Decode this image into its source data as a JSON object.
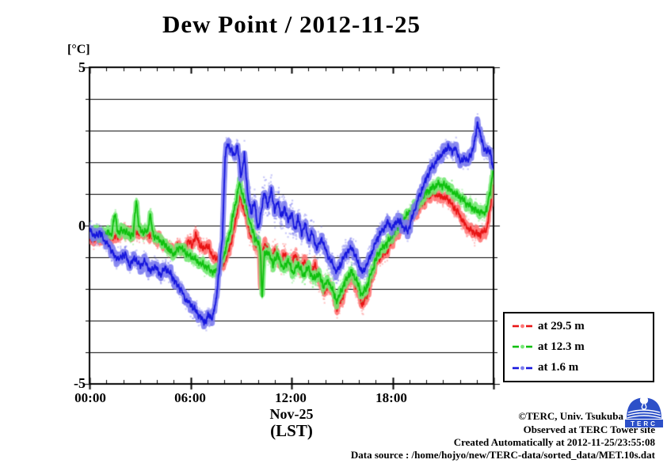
{
  "chart_data": {
    "type": "line",
    "title": "Dew Point / 2012-11-25",
    "ylabel": "[°C]",
    "xlabel": "Nov-25",
    "xlabel_sub": "(LST)",
    "xlim_hours": [
      0,
      24
    ],
    "ylim": [
      -5,
      5
    ],
    "grid": "horizontal, every 1 degC",
    "legend_position": "outside-right-bottom",
    "y_ticks": [
      {
        "value": 5,
        "label": "5"
      },
      {
        "value": 0,
        "label": "0"
      },
      {
        "value": -5,
        "label": "-5"
      }
    ],
    "x_ticks": [
      {
        "hour": 0,
        "label": "00:00"
      },
      {
        "hour": 6,
        "label": "06:00"
      },
      {
        "hour": 12,
        "label": "12:00"
      },
      {
        "hour": 18,
        "label": "18:00"
      }
    ],
    "series": [
      {
        "name": "at 29.5 m",
        "color_core": "#e81414",
        "color_band": "#ff7474",
        "points": [
          [
            0,
            -0.45
          ],
          [
            0.5,
            -0.4
          ],
          [
            1,
            -0.42
          ],
          [
            1.5,
            -0.35
          ],
          [
            1.8,
            -0.3
          ],
          [
            2.1,
            -0.12
          ],
          [
            2.3,
            -0.3
          ],
          [
            2.6,
            -0.2
          ],
          [
            3,
            -0.22
          ],
          [
            3.5,
            -0.28
          ],
          [
            4,
            -0.38
          ],
          [
            4.5,
            -0.62
          ],
          [
            5,
            -0.85
          ],
          [
            5.3,
            -0.6
          ],
          [
            5.6,
            -0.8
          ],
          [
            5.9,
            -0.45
          ],
          [
            6.1,
            -0.65
          ],
          [
            6.3,
            -0.3
          ],
          [
            6.55,
            -0.6
          ],
          [
            6.8,
            -0.75
          ],
          [
            7,
            -0.6
          ],
          [
            7.3,
            -0.95
          ],
          [
            7.6,
            -1.1
          ],
          [
            7.9,
            -1.28
          ],
          [
            8.1,
            -1.05
          ],
          [
            8.3,
            -0.75
          ],
          [
            8.6,
            -0.05
          ],
          [
            8.95,
            0.98
          ],
          [
            9.1,
            0.62
          ],
          [
            9.3,
            0.35
          ],
          [
            9.5,
            -0.15
          ],
          [
            9.7,
            -0.45
          ],
          [
            9.9,
            -0.62
          ],
          [
            10.05,
            -0.55
          ],
          [
            10.15,
            -1.95
          ],
          [
            10.3,
            -0.7
          ],
          [
            10.5,
            -0.62
          ],
          [
            10.8,
            -1.1
          ],
          [
            11,
            -0.72
          ],
          [
            11.3,
            -1.2
          ],
          [
            11.6,
            -0.9
          ],
          [
            11.9,
            -1.3
          ],
          [
            12.2,
            -0.92
          ],
          [
            12.5,
            -1.38
          ],
          [
            12.8,
            -1.1
          ],
          [
            13.1,
            -1.5
          ],
          [
            13.4,
            -1.25
          ],
          [
            13.7,
            -1.8
          ],
          [
            14,
            -2.05
          ],
          [
            14.3,
            -1.85
          ],
          [
            14.7,
            -2.6
          ],
          [
            15,
            -2.3
          ],
          [
            15.35,
            -1.75
          ],
          [
            15.6,
            -1.62
          ],
          [
            15.9,
            -2
          ],
          [
            16.2,
            -2.5
          ],
          [
            16.5,
            -2.2
          ],
          [
            16.8,
            -1.6
          ],
          [
            17.1,
            -1.1
          ],
          [
            17.4,
            -0.92
          ],
          [
            17.7,
            -0.8
          ],
          [
            18,
            -0.45
          ],
          [
            18.3,
            -0.22
          ],
          [
            18.6,
            -0.02
          ],
          [
            18.9,
            0.18
          ],
          [
            19.2,
            0.3
          ],
          [
            19.5,
            0.5
          ],
          [
            19.8,
            0.72
          ],
          [
            20.1,
            0.9
          ],
          [
            20.4,
            1.02
          ],
          [
            20.7,
            0.95
          ],
          [
            21,
            0.9
          ],
          [
            21.3,
            0.85
          ],
          [
            21.6,
            0.6
          ],
          [
            21.9,
            0.42
          ],
          [
            22.2,
            0.12
          ],
          [
            22.5,
            -0.08
          ],
          [
            22.8,
            -0.2
          ],
          [
            23.1,
            -0.27
          ],
          [
            23.4,
            -0.22
          ],
          [
            23.6,
            -0.12
          ],
          [
            23.8,
            0.55
          ],
          [
            24,
            1.55
          ]
        ]
      },
      {
        "name": "at 12.3 m",
        "color_core": "#0ec00e",
        "color_band": "#74e874",
        "points": [
          [
            0,
            -0.18
          ],
          [
            0.4,
            -0.25
          ],
          [
            0.8,
            -0.3
          ],
          [
            1.1,
            -0.22
          ],
          [
            1.3,
            -0.28
          ],
          [
            1.5,
            0.35
          ],
          [
            1.7,
            -0.22
          ],
          [
            2,
            -0.12
          ],
          [
            2.3,
            -0.28
          ],
          [
            2.6,
            -0.3
          ],
          [
            2.78,
            0.85
          ],
          [
            2.95,
            -0.12
          ],
          [
            3.2,
            -0.18
          ],
          [
            3.45,
            -0.22
          ],
          [
            3.6,
            0.4
          ],
          [
            3.78,
            -0.3
          ],
          [
            4.1,
            -0.42
          ],
          [
            4.4,
            -0.55
          ],
          [
            4.7,
            -0.75
          ],
          [
            5,
            -0.9
          ],
          [
            5.4,
            -0.68
          ],
          [
            5.8,
            -0.9
          ],
          [
            6.2,
            -1.05
          ],
          [
            6.6,
            -1.2
          ],
          [
            7,
            -1.32
          ],
          [
            7.4,
            -1.48
          ],
          [
            7.7,
            -1.3
          ],
          [
            8,
            -0.9
          ],
          [
            8.3,
            -0.3
          ],
          [
            8.6,
            0.5
          ],
          [
            8.9,
            1.35
          ],
          [
            9.1,
            1
          ],
          [
            9.3,
            0.65
          ],
          [
            9.5,
            0.18
          ],
          [
            9.8,
            -0.35
          ],
          [
            10.05,
            -0.6
          ],
          [
            10.15,
            -0.75
          ],
          [
            10.25,
            -2.3
          ],
          [
            10.4,
            -0.9
          ],
          [
            10.6,
            -0.82
          ],
          [
            10.9,
            -1.2
          ],
          [
            11.2,
            -0.92
          ],
          [
            11.5,
            -1.38
          ],
          [
            11.8,
            -1.1
          ],
          [
            12.1,
            -1.5
          ],
          [
            12.4,
            -1.2
          ],
          [
            12.7,
            -1.6
          ],
          [
            13,
            -1.32
          ],
          [
            13.3,
            -1.7
          ],
          [
            13.6,
            -1.5
          ],
          [
            13.9,
            -1.9
          ],
          [
            14.2,
            -1.72
          ],
          [
            14.7,
            -2.4
          ],
          [
            15,
            -2
          ],
          [
            15.35,
            -1.6
          ],
          [
            15.6,
            -1.45
          ],
          [
            15.9,
            -1.8
          ],
          [
            16.2,
            -2.2
          ],
          [
            16.5,
            -1.9
          ],
          [
            16.8,
            -1.4
          ],
          [
            17.1,
            -0.92
          ],
          [
            17.4,
            -0.7
          ],
          [
            17.7,
            -0.55
          ],
          [
            18,
            -0.3
          ],
          [
            18.3,
            -0.05
          ],
          [
            18.6,
            0.15
          ],
          [
            18.9,
            0.35
          ],
          [
            19.2,
            0.52
          ],
          [
            19.5,
            0.7
          ],
          [
            19.8,
            0.9
          ],
          [
            20.1,
            1.1
          ],
          [
            20.4,
            1.2
          ],
          [
            20.7,
            1.3
          ],
          [
            21,
            1.27
          ],
          [
            21.3,
            1.22
          ],
          [
            21.6,
            1.05
          ],
          [
            21.9,
            0.95
          ],
          [
            22.2,
            0.8
          ],
          [
            22.5,
            0.65
          ],
          [
            22.8,
            0.55
          ],
          [
            23.1,
            0.45
          ],
          [
            23.4,
            0.4
          ],
          [
            23.6,
            0.52
          ],
          [
            23.8,
            1.1
          ],
          [
            24,
            1.9
          ]
        ]
      },
      {
        "name": "at 1.6 m",
        "color_core": "#1616dd",
        "color_band": "#7a7aee",
        "points": [
          [
            0,
            -0.1
          ],
          [
            0.3,
            -0.35
          ],
          [
            0.6,
            -0.2
          ],
          [
            0.9,
            -0.48
          ],
          [
            1.2,
            -0.65
          ],
          [
            1.5,
            -1
          ],
          [
            1.8,
            -1.05
          ],
          [
            2.1,
            -0.88
          ],
          [
            2.4,
            -1.25
          ],
          [
            2.7,
            -1
          ],
          [
            3,
            -1.3
          ],
          [
            3.3,
            -1.1
          ],
          [
            3.6,
            -1.45
          ],
          [
            3.9,
            -1.28
          ],
          [
            4.2,
            -1.55
          ],
          [
            4.5,
            -1.35
          ],
          [
            4.8,
            -1.5
          ],
          [
            5.1,
            -1.8
          ],
          [
            5.4,
            -2
          ],
          [
            5.7,
            -2.3
          ],
          [
            6,
            -2.5
          ],
          [
            6.3,
            -2.7
          ],
          [
            6.6,
            -2.9
          ],
          [
            6.9,
            -3.05
          ],
          [
            7.1,
            -2.8
          ],
          [
            7.3,
            -2.95
          ],
          [
            7.5,
            -2.4
          ],
          [
            7.7,
            -1.5
          ],
          [
            7.9,
            -0.3
          ],
          [
            8.05,
            2.1
          ],
          [
            8.2,
            2.62
          ],
          [
            8.4,
            2.4
          ],
          [
            8.6,
            2.2
          ],
          [
            8.8,
            2.5
          ],
          [
            9,
            1.55
          ],
          [
            9.2,
            2.2
          ],
          [
            9.4,
            1
          ],
          [
            9.6,
            0.35
          ],
          [
            9.8,
            0.8
          ],
          [
            10,
            -0.15
          ],
          [
            10.2,
            0.45
          ],
          [
            10.4,
            1.05
          ],
          [
            10.6,
            0.6
          ],
          [
            10.8,
            1.15
          ],
          [
            11,
            0.45
          ],
          [
            11.2,
            0.8
          ],
          [
            11.4,
            0.25
          ],
          [
            11.6,
            0.6
          ],
          [
            11.8,
            0.1
          ],
          [
            12,
            0.42
          ],
          [
            12.2,
            -0.15
          ],
          [
            12.4,
            0.3
          ],
          [
            12.6,
            -0.3
          ],
          [
            12.8,
            0.1
          ],
          [
            13,
            -0.5
          ],
          [
            13.2,
            -0.2
          ],
          [
            13.5,
            -0.7
          ],
          [
            13.8,
            -0.42
          ],
          [
            14.1,
            -0.9
          ],
          [
            14.4,
            -1.2
          ],
          [
            14.7,
            -1.5
          ],
          [
            15,
            -1.1
          ],
          [
            15.35,
            -0.8
          ],
          [
            15.6,
            -0.72
          ],
          [
            15.9,
            -1.1
          ],
          [
            16.2,
            -1.5
          ],
          [
            16.5,
            -1.2
          ],
          [
            16.8,
            -0.8
          ],
          [
            17.1,
            -0.4
          ],
          [
            17.4,
            -0.15
          ],
          [
            17.7,
            0.1
          ],
          [
            18,
            -0.08
          ],
          [
            18.3,
            0.2
          ],
          [
            18.6,
            0
          ],
          [
            18.9,
            -0.2
          ],
          [
            19.2,
            0.3
          ],
          [
            19.5,
            0.8
          ],
          [
            19.8,
            1.2
          ],
          [
            20.1,
            1.6
          ],
          [
            20.4,
            1.9
          ],
          [
            20.7,
            2.1
          ],
          [
            21,
            2.3
          ],
          [
            21.3,
            2.5
          ],
          [
            21.5,
            2.35
          ],
          [
            21.7,
            2.45
          ],
          [
            21.9,
            2.2
          ],
          [
            22.1,
            2
          ],
          [
            22.3,
            2.15
          ],
          [
            22.5,
            2.05
          ],
          [
            22.7,
            2.3
          ],
          [
            22.9,
            2.7
          ],
          [
            23.05,
            3.3
          ],
          [
            23.2,
            2.9
          ],
          [
            23.4,
            2.5
          ],
          [
            23.6,
            2.3
          ],
          [
            23.8,
            2.4
          ],
          [
            24,
            1.7
          ]
        ]
      }
    ]
  },
  "footer": {
    "line1": "©TERC, Univ. Tsukuba",
    "line2": "Observed at TERC Tower site",
    "line3": "Created Automatically at 2012-11-25/23:55:08",
    "line4": "Data source : /home/hojyo/new/TERC-data/sorted_data/MET.10s.dat",
    "logo_text": "TERC",
    "logo_color": "#2d50c8"
  }
}
